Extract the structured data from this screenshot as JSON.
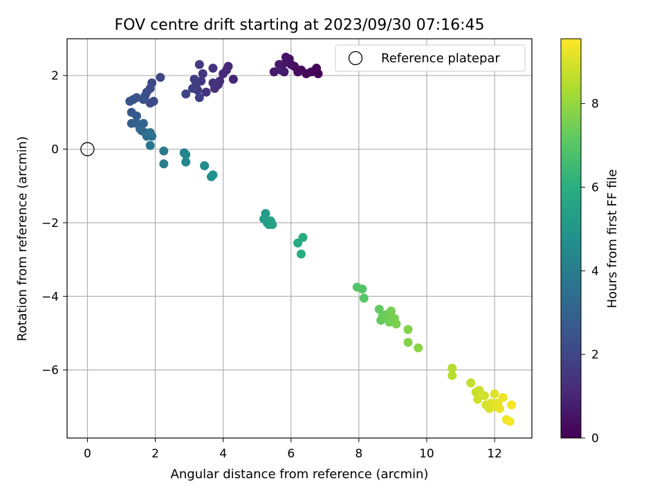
{
  "chart_data": {
    "type": "scatter",
    "title": "FOV centre drift starting at 2023/09/30 07:16:45",
    "xlabel": "Angular distance from reference (arcmin)",
    "ylabel": "Rotation from reference (arcmin)",
    "xlim": [
      -0.6,
      13.1
    ],
    "ylim": [
      -7.85,
      3.0
    ],
    "xticks": [
      0,
      2,
      4,
      6,
      8,
      10,
      12
    ],
    "yticks": [
      2,
      0,
      -2,
      -4,
      -6
    ],
    "grid": true,
    "legend": {
      "placement": "top-right",
      "entries": [
        "Reference platepar"
      ]
    },
    "reference_point": {
      "x": 0,
      "y": 0
    },
    "colorbar": {
      "label": "Hours from first FF file",
      "colormap": "viridis",
      "range": [
        0,
        9.55
      ],
      "ticks": [
        0,
        2,
        4,
        6,
        8
      ]
    },
    "series": [
      {
        "points": [
          [
            6.8,
            2.05,
            0.05
          ],
          [
            6.75,
            2.2,
            0.1
          ],
          [
            6.6,
            2.1,
            0.15
          ],
          [
            6.45,
            2.05,
            0.2
          ],
          [
            6.3,
            2.15,
            0.25
          ],
          [
            6.2,
            2.1,
            0.3
          ],
          [
            6.1,
            2.25,
            0.35
          ],
          [
            6.0,
            2.3,
            0.4
          ],
          [
            5.95,
            2.45,
            0.45
          ],
          [
            5.85,
            2.5,
            0.5
          ],
          [
            5.75,
            2.3,
            0.55
          ],
          [
            5.8,
            2.1,
            0.6
          ],
          [
            5.65,
            2.3,
            0.65
          ],
          [
            5.5,
            2.1,
            0.7
          ],
          [
            5.7,
            2.15,
            0.75
          ],
          [
            4.3,
            1.9,
            1.0
          ],
          [
            4.15,
            2.25,
            1.05
          ],
          [
            4.1,
            2.15,
            1.1
          ],
          [
            4.0,
            2.05,
            1.15
          ],
          [
            3.9,
            1.85,
            1.2
          ],
          [
            3.85,
            1.75,
            1.25
          ],
          [
            3.75,
            1.65,
            1.3
          ],
          [
            3.7,
            1.8,
            1.35
          ],
          [
            3.7,
            2.2,
            1.4
          ],
          [
            3.5,
            1.55,
            1.45
          ],
          [
            3.4,
            2.05,
            1.5
          ],
          [
            3.35,
            1.85,
            1.55
          ],
          [
            3.3,
            2.3,
            1.6
          ],
          [
            3.25,
            1.6,
            1.65
          ],
          [
            3.2,
            1.75,
            1.7
          ],
          [
            3.15,
            1.9,
            1.75
          ],
          [
            3.1,
            1.65,
            1.8
          ],
          [
            3.3,
            1.4,
            1.85
          ],
          [
            2.9,
            1.5,
            1.9
          ],
          [
            2.15,
            1.95,
            2.0
          ],
          [
            1.9,
            1.8,
            2.05
          ],
          [
            1.85,
            1.65,
            2.1
          ],
          [
            1.95,
            1.3,
            2.15
          ],
          [
            1.85,
            1.25,
            2.2
          ],
          [
            1.75,
            1.55,
            2.25
          ],
          [
            1.7,
            1.45,
            2.3
          ],
          [
            1.65,
            1.35,
            2.35
          ],
          [
            1.45,
            1.4,
            2.4
          ],
          [
            1.35,
            1.35,
            2.45
          ],
          [
            1.25,
            1.3,
            2.5
          ],
          [
            1.3,
            1.0,
            2.6
          ],
          [
            1.45,
            0.9,
            2.7
          ],
          [
            1.3,
            0.7,
            2.8
          ],
          [
            1.45,
            0.7,
            2.9
          ],
          [
            1.55,
            0.55,
            3.0
          ],
          [
            1.65,
            0.7,
            3.1
          ],
          [
            1.6,
            0.5,
            3.2
          ],
          [
            1.7,
            0.45,
            3.3
          ],
          [
            1.75,
            0.35,
            3.4
          ],
          [
            1.85,
            0.45,
            3.5
          ],
          [
            1.9,
            0.35,
            3.6
          ],
          [
            1.85,
            0.1,
            3.7
          ],
          [
            2.25,
            -0.05,
            3.9
          ],
          [
            2.25,
            -0.4,
            4.0
          ],
          [
            2.85,
            -0.1,
            4.3
          ],
          [
            2.9,
            -0.15,
            4.35
          ],
          [
            2.9,
            -0.35,
            4.4
          ],
          [
            3.45,
            -0.45,
            4.6
          ],
          [
            3.65,
            -0.75,
            4.7
          ],
          [
            3.7,
            -0.7,
            4.75
          ],
          [
            5.25,
            -1.75,
            5.2
          ],
          [
            5.2,
            -1.9,
            5.25
          ],
          [
            5.3,
            -2.0,
            5.3
          ],
          [
            5.35,
            -2.05,
            5.35
          ],
          [
            5.4,
            -1.95,
            5.4
          ],
          [
            5.45,
            -2.05,
            5.45
          ],
          [
            6.2,
            -2.55,
            5.8
          ],
          [
            6.35,
            -2.4,
            5.85
          ],
          [
            6.3,
            -2.85,
            5.9
          ],
          [
            7.95,
            -3.75,
            6.9
          ],
          [
            8.1,
            -3.8,
            6.95
          ],
          [
            8.15,
            -4.05,
            7.0
          ],
          [
            8.6,
            -4.35,
            7.2
          ],
          [
            8.65,
            -4.65,
            7.25
          ],
          [
            8.7,
            -4.55,
            7.3
          ],
          [
            8.8,
            -4.5,
            7.35
          ],
          [
            8.85,
            -4.6,
            7.4
          ],
          [
            8.9,
            -4.7,
            7.45
          ],
          [
            8.95,
            -4.4,
            7.5
          ],
          [
            9.05,
            -4.6,
            7.55
          ],
          [
            9.1,
            -4.75,
            7.6
          ],
          [
            9.45,
            -4.9,
            7.7
          ],
          [
            9.45,
            -5.25,
            7.75
          ],
          [
            9.75,
            -5.4,
            7.85
          ],
          [
            10.75,
            -5.95,
            8.5
          ],
          [
            10.75,
            -6.15,
            8.55
          ],
          [
            11.3,
            -6.35,
            8.7
          ],
          [
            11.45,
            -6.6,
            8.75
          ],
          [
            11.55,
            -6.55,
            8.8
          ],
          [
            11.5,
            -6.8,
            8.85
          ],
          [
            11.7,
            -6.7,
            8.9
          ],
          [
            11.75,
            -6.95,
            8.95
          ],
          [
            11.85,
            -7.05,
            9.0
          ],
          [
            11.9,
            -6.9,
            9.05
          ],
          [
            12.0,
            -6.65,
            9.1
          ],
          [
            12.05,
            -7.0,
            9.15
          ],
          [
            12.1,
            -6.9,
            9.2
          ],
          [
            12.15,
            -7.05,
            9.25
          ],
          [
            12.25,
            -6.75,
            9.3
          ],
          [
            12.35,
            -7.35,
            9.35
          ],
          [
            12.45,
            -7.4,
            9.4
          ],
          [
            12.5,
            -6.95,
            9.45
          ]
        ]
      }
    ]
  }
}
